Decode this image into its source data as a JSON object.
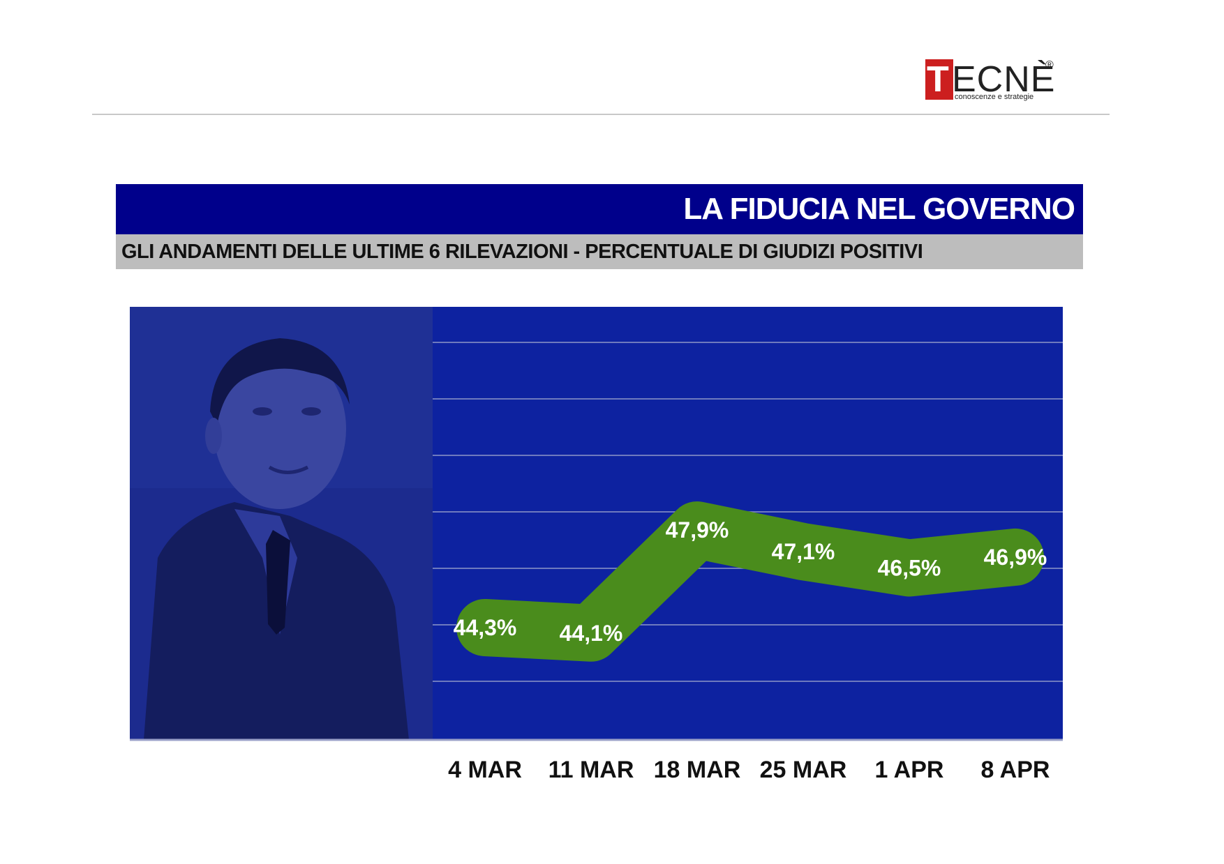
{
  "logo": {
    "letter_first": "T",
    "letters_rest": "ECNÈ",
    "registered": "®",
    "tagline": "conoscenze e strategie"
  },
  "header": {
    "title": "LA FIDUCIA NEL GOVERNO",
    "subtitle": "GLI ANDAMENTI DELLE ULTIME 6 RILEVAZIONI - PERCENTUALE DI GIUDIZI POSITIVI"
  },
  "colors": {
    "title_bar": "#00008b",
    "subtitle_bar": "#bdbdbd",
    "plot_bg": "#0d22a0",
    "line": "#4a8c1c",
    "logo_red": "#cc1f1f"
  },
  "chart_data": {
    "type": "line",
    "categories": [
      "4 MAR",
      "11 MAR",
      "18 MAR",
      "25 MAR",
      "1 APR",
      "8 APR"
    ],
    "values": [
      44.3,
      44.1,
      47.9,
      47.1,
      46.5,
      46.9
    ],
    "data_labels": [
      "44,3%",
      "44,1%",
      "47,9%",
      "47,1%",
      "46,5%",
      "46,9%"
    ],
    "unit": "%",
    "grid": true,
    "legend": "none"
  }
}
